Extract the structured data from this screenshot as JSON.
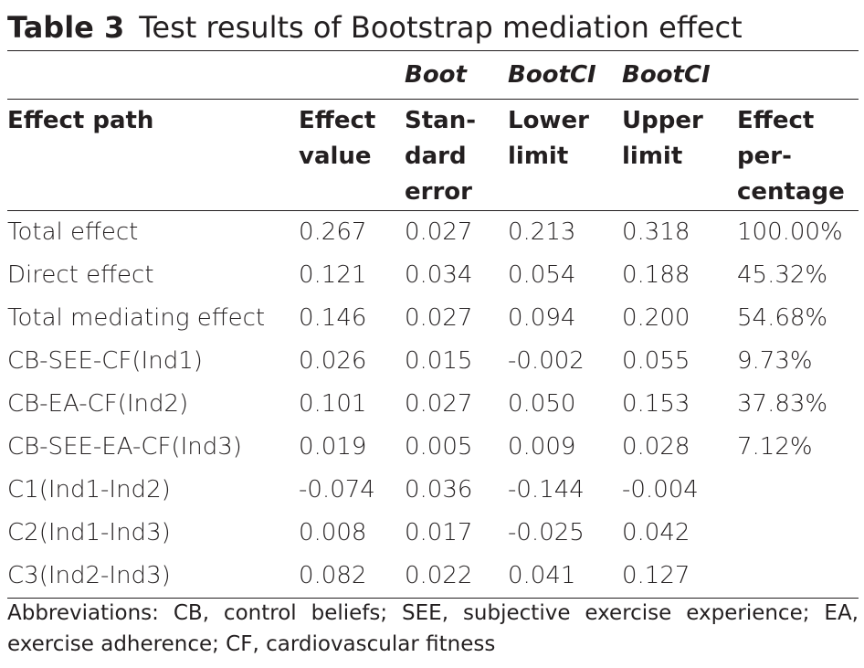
{
  "title": {
    "label": "Table 3",
    "text": "Test results of Bootstrap mediation effect"
  },
  "header_top": [
    "",
    "",
    "Boot",
    "BootCI",
    "BootCI",
    ""
  ],
  "header_main": [
    {
      "lines": [
        "Effect path"
      ]
    },
    {
      "lines": [
        "Effect",
        "value"
      ]
    },
    {
      "lines": [
        "Stan-",
        "dard",
        "error"
      ]
    },
    {
      "lines": [
        "Lower",
        "limit"
      ]
    },
    {
      "lines": [
        "Upper",
        "limit"
      ]
    },
    {
      "lines": [
        "Effect",
        "per-",
        "centage"
      ]
    }
  ],
  "rows": [
    [
      "Total effect",
      "0.267",
      "0.027",
      "0.213",
      "0.318",
      "100.00%"
    ],
    [
      "Direct effect",
      "0.121",
      "0.034",
      "0.054",
      "0.188",
      "45.32%"
    ],
    [
      "Total mediating effect",
      "0.146",
      "0.027",
      "0.094",
      "0.200",
      "54.68%"
    ],
    [
      "CB-SEE-CF(Ind1)",
      "0.026",
      "0.015",
      "-0.002",
      "0.055",
      "9.73%"
    ],
    [
      "CB-EA-CF(Ind2)",
      "0.101",
      "0.027",
      "0.050",
      "0.153",
      "37.83%"
    ],
    [
      "CB-SEE-EA-CF(Ind3)",
      "0.019",
      "0.005",
      "0.009",
      "0.028",
      "7.12%"
    ],
    [
      "C1(Ind1-Ind2)",
      "-0.074",
      "0.036",
      "-0.144",
      "-0.004",
      ""
    ],
    [
      "C2(Ind1-Ind3)",
      "0.008",
      "0.017",
      "-0.025",
      "0.042",
      ""
    ],
    [
      "C3(Ind2-Ind3)",
      "0.082",
      "0.022",
      "0.041",
      "0.127",
      ""
    ]
  ],
  "footnote": "Abbreviations: CB, control beliefs; SEE, subjective exercise experience; EA, exercise adherence; CF, cardiovascular fitness"
}
